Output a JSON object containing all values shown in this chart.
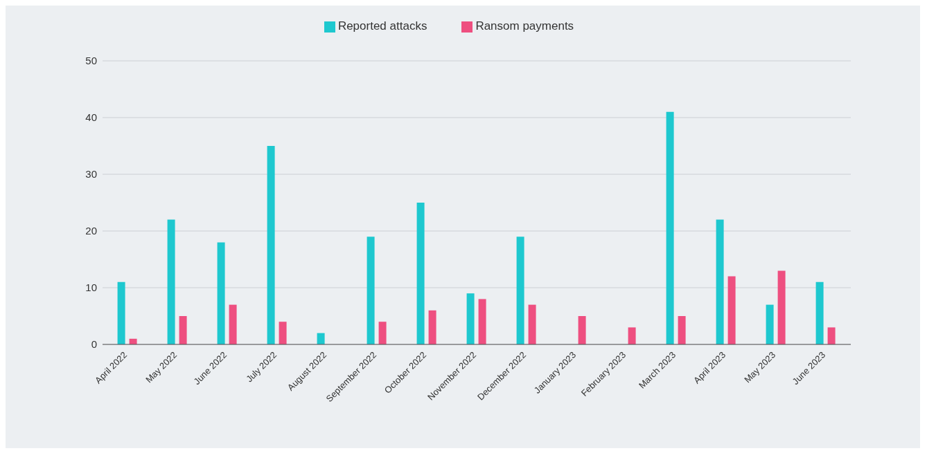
{
  "chart_data": {
    "type": "bar",
    "categories": [
      "April 2022",
      "May 2022",
      "June 2022",
      "July 2022",
      "August 2022",
      "September 2022",
      "October 2022",
      "November 2022",
      "December 2022",
      "January 2023",
      "February 2023",
      "March 2023",
      "April 2023",
      "May 2023",
      "June 2023"
    ],
    "series": [
      {
        "name": "Reported attacks",
        "color": "#1ec8cf",
        "values": [
          11,
          22,
          18,
          35,
          2,
          19,
          25,
          9,
          19,
          0,
          0,
          41,
          22,
          7,
          11
        ]
      },
      {
        "name": "Ransom payments",
        "color": "#ee4f80",
        "values": [
          1,
          5,
          7,
          4,
          0,
          4,
          6,
          8,
          7,
          5,
          3,
          5,
          12,
          13,
          3
        ]
      }
    ],
    "ylim": [
      0,
      50
    ],
    "yticks": [
      0,
      10,
      20,
      30,
      40,
      50
    ],
    "grid": "y",
    "legend": "top"
  }
}
